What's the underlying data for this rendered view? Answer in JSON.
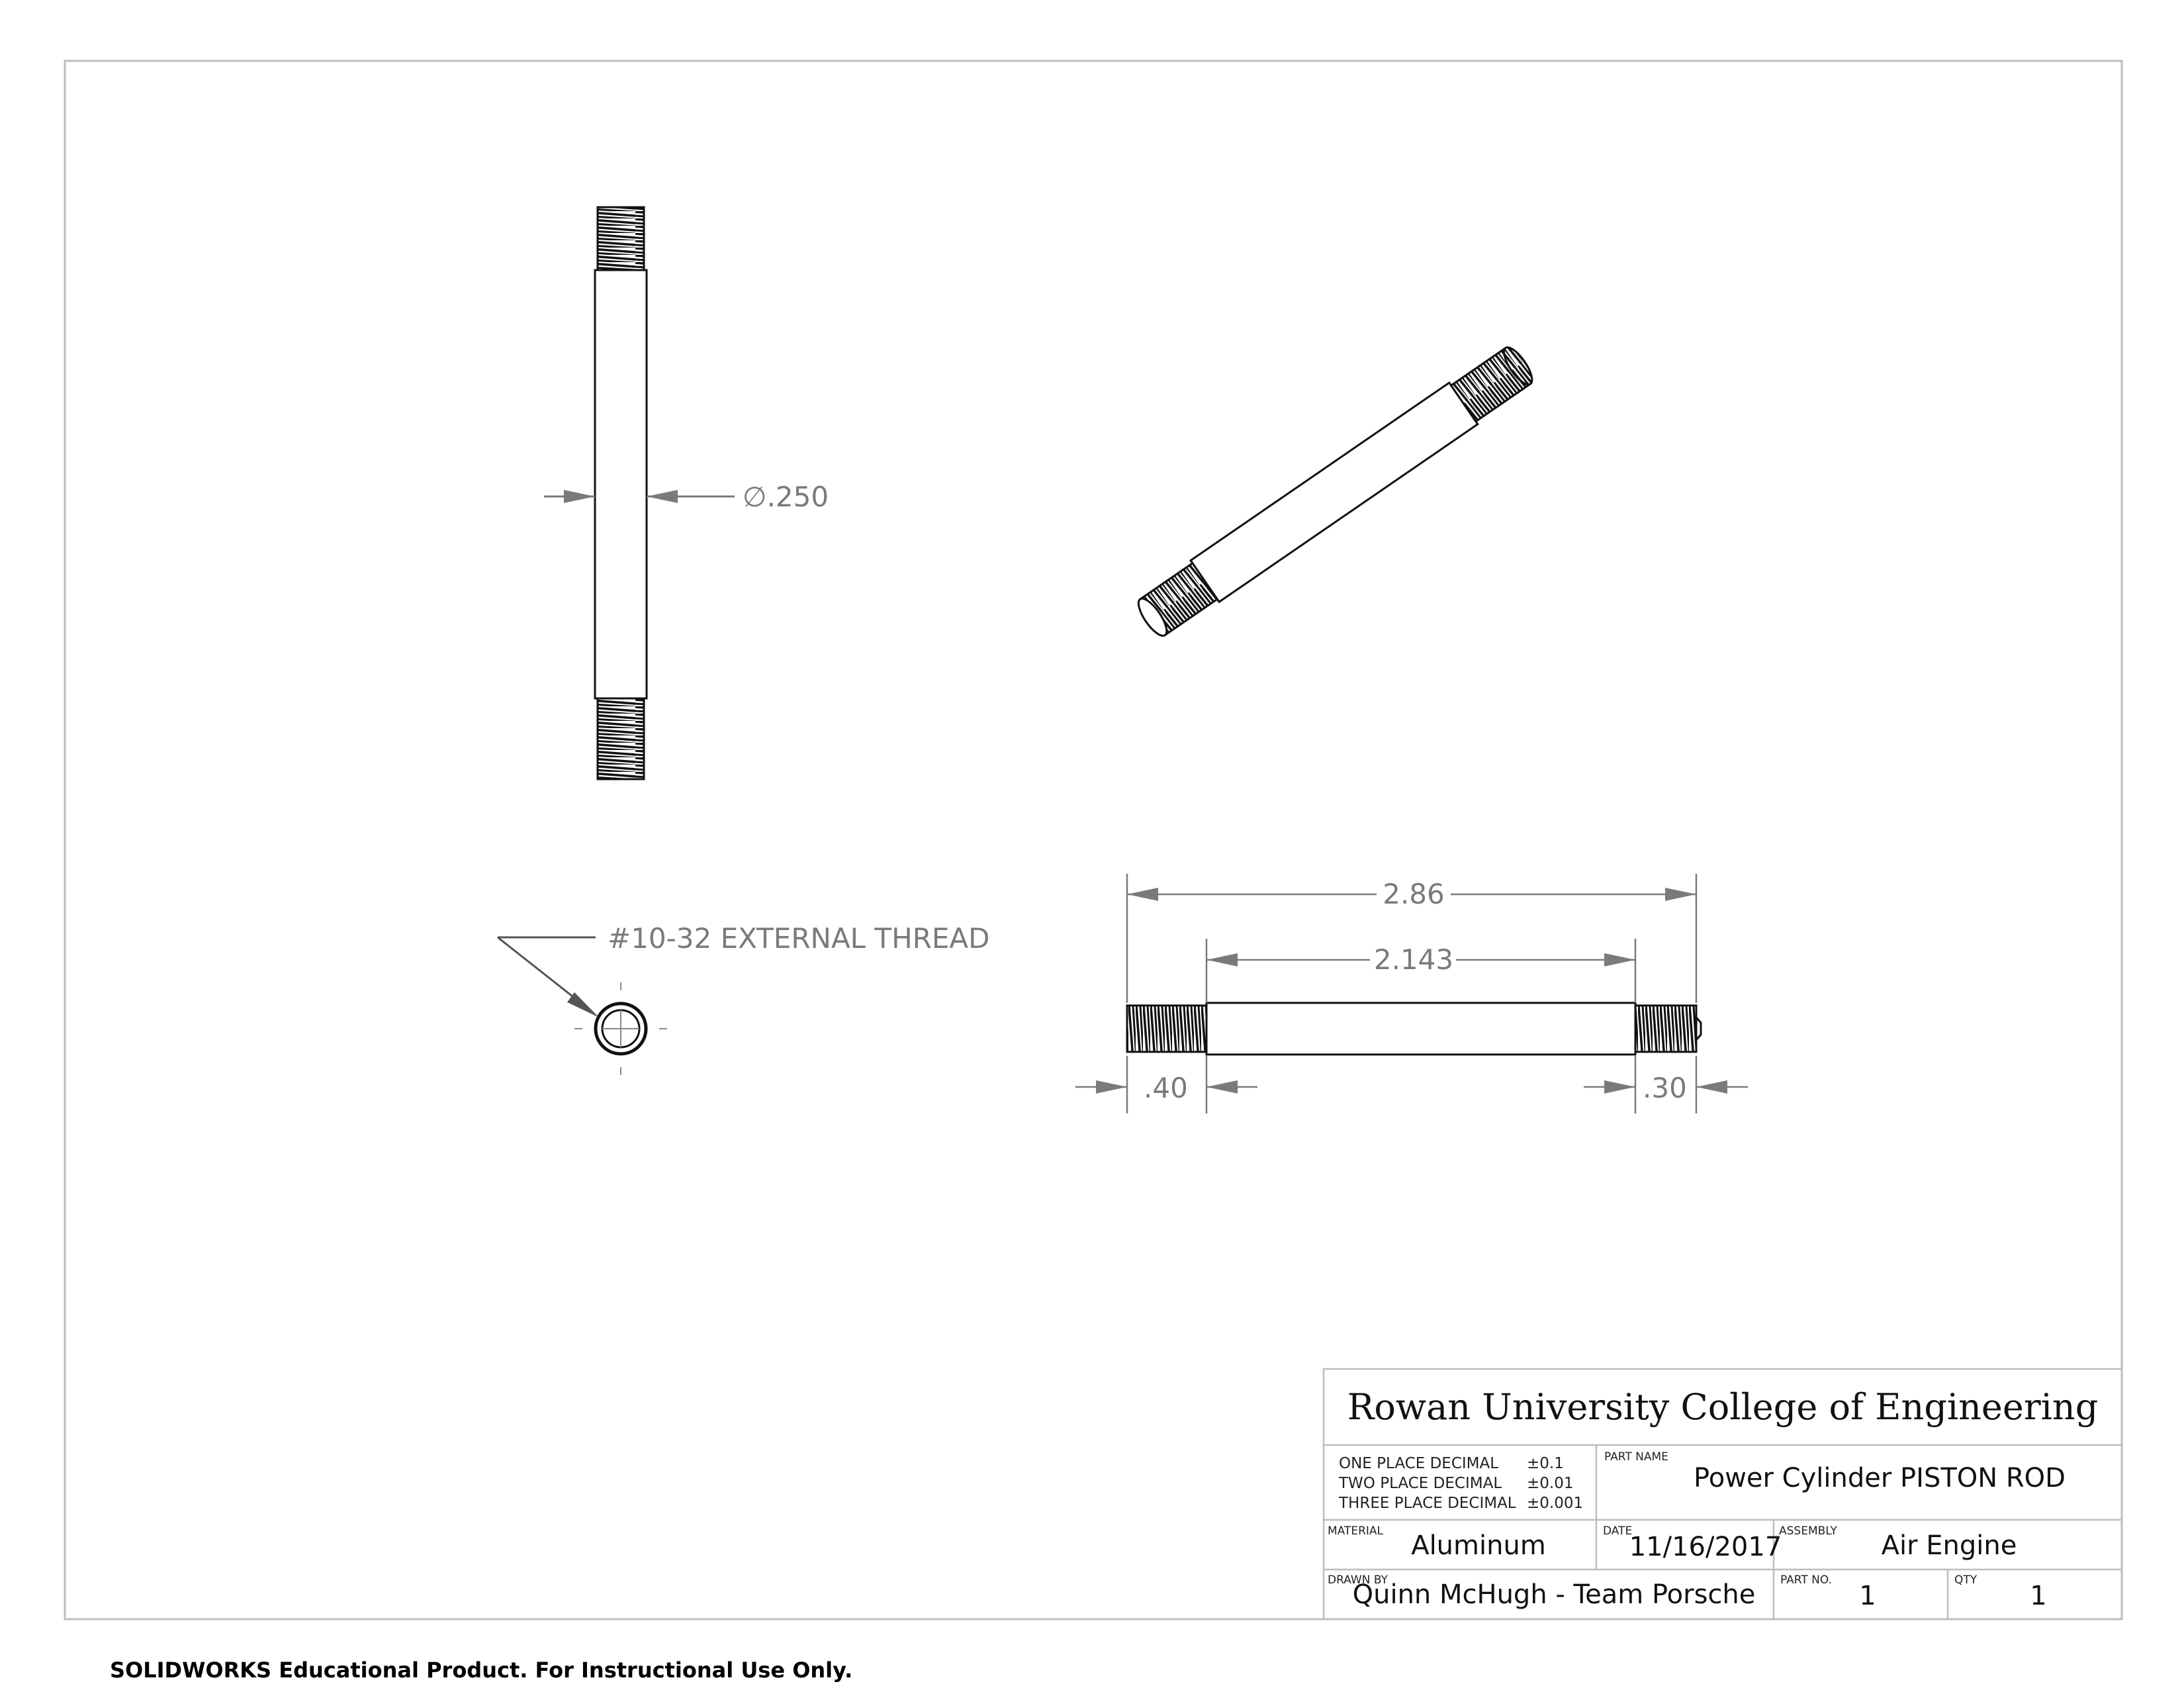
{
  "views": {
    "side_view": {
      "diameter_label": "∅.250"
    },
    "end_view": {
      "thread_callout": "#10-32 EXTERNAL THREAD"
    },
    "front_view": {
      "overall_length": "2.86",
      "body_length": "2.143",
      "left_thread_length": ".40",
      "right_thread_length": ".30"
    }
  },
  "title_block": {
    "institution": "Rowan University College of Engineering",
    "tolerances": [
      {
        "label": "ONE PLACE DECIMAL",
        "value": "±0.1"
      },
      {
        "label": "TWO PLACE DECIMAL",
        "value": "±0.01"
      },
      {
        "label": "THREE PLACE DECIMAL",
        "value": "±0.001"
      }
    ],
    "part_name_label": "PART NAME",
    "part_name": "Power Cylinder PISTON ROD",
    "material_label": "MATERIAL",
    "material": "Aluminum",
    "date_label": "DATE",
    "date": "11/16/2017",
    "assembly_label": "ASSEMBLY",
    "assembly": "Air Engine",
    "drawn_by_label": "DRAWN BY",
    "drawn_by": "Quinn McHugh - Team Porsche",
    "part_no_label": "PART NO.",
    "part_no": "1",
    "qty_label": "QTY",
    "qty": "1"
  },
  "footer": "SOLIDWORKS Educational Product. For Instructional Use Only."
}
